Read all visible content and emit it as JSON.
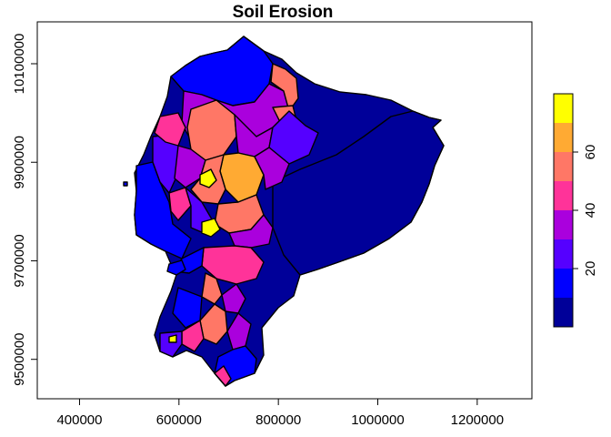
{
  "title": "Soil Erosion",
  "map": {
    "x_ticks": [
      "400000",
      "600000",
      "800000",
      "1000000",
      "1200000"
    ],
    "y_ticks": [
      "9500000",
      "9700000",
      "9900000",
      "10100000"
    ],
    "x_tick_values": [
      400000,
      600000,
      800000,
      1000000,
      1200000
    ],
    "y_tick_values": [
      9500000,
      9700000,
      9900000,
      10100000
    ],
    "xlim": [
      315000,
      1310000
    ],
    "ylim": [
      9420000,
      10185000
    ],
    "grid": false,
    "legend_position": "right"
  },
  "legend": {
    "title": "",
    "tick_labels": [
      "20",
      "40",
      "60"
    ],
    "tick_values": [
      20,
      40,
      60
    ],
    "range": [
      0,
      80
    ],
    "breaks": [
      0,
      10,
      20,
      30,
      40,
      50,
      60,
      70,
      80
    ],
    "colors": [
      "#000099",
      "#0000ff",
      "#5500ff",
      "#aa00dd",
      "#ff3399",
      "#ff7766",
      "#ffaa33",
      "#ffff00"
    ]
  }
}
